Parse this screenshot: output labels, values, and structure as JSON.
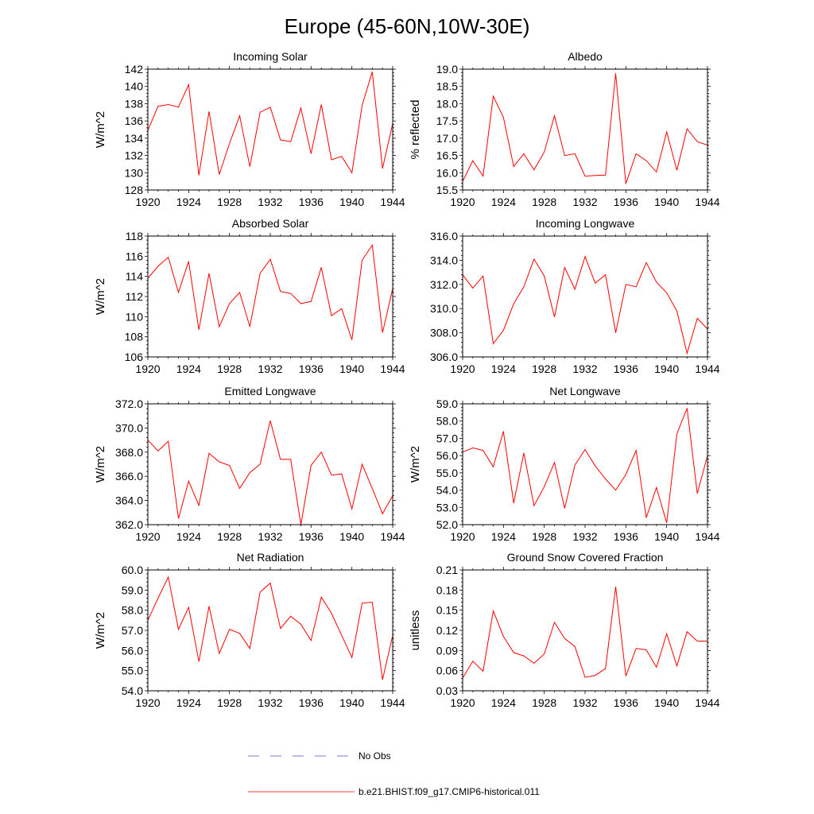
{
  "title": "Europe (45-60N,10W-30E)",
  "colors": {
    "model": "#ff0000",
    "obs": "#4d4dcc",
    "axis": "#000000"
  },
  "legend": {
    "obs_label": "No Obs",
    "model_label": "b.e21.BHIST.f09_g17.CMIP6-historical.011",
    "placement": "bottom-center"
  },
  "chart_data": [
    {
      "type": "line",
      "title": "Incoming Solar",
      "ylabel": "W/m^2",
      "xlim": [
        1920,
        1944
      ],
      "ylim": [
        128,
        142
      ],
      "xticks": [
        "1920",
        "1924",
        "1928",
        "1932",
        "1936",
        "1940",
        "1944"
      ],
      "yticks": [
        "128",
        "130",
        "132",
        "134",
        "136",
        "138",
        "140",
        "142"
      ],
      "series": [
        {
          "name": "b.e21.BHIST.f09_g17.CMIP6-historical.011",
          "x": [
            1920,
            1921,
            1922,
            1923,
            1924,
            1925,
            1926,
            1927,
            1928,
            1929,
            1930,
            1931,
            1932,
            1933,
            1934,
            1935,
            1936,
            1937,
            1938,
            1939,
            1940,
            1941,
            1942,
            1943,
            1944
          ],
          "values": [
            134.9,
            137.7,
            137.9,
            137.6,
            140.2,
            129.7,
            137.1,
            129.8,
            133.4,
            136.6,
            130.7,
            137.0,
            137.6,
            133.8,
            133.6,
            137.5,
            132.2,
            137.9,
            131.5,
            131.9,
            130.0,
            137.8,
            141.7,
            130.5,
            135.7
          ]
        }
      ]
    },
    {
      "type": "line",
      "title": "Albedo",
      "ylabel": "% reflected",
      "xlim": [
        1920,
        1944
      ],
      "ylim": [
        15.5,
        19.0
      ],
      "xticks": [
        "1920",
        "1924",
        "1928",
        "1932",
        "1936",
        "1940",
        "1944"
      ],
      "yticks": [
        "15.5",
        "16.0",
        "16.5",
        "17.0",
        "17.5",
        "18.0",
        "18.5",
        "19.0"
      ],
      "series": [
        {
          "name": "b.e21.BHIST.f09_g17.CMIP6-historical.011",
          "x": [
            1920,
            1921,
            1922,
            1923,
            1924,
            1925,
            1926,
            1927,
            1928,
            1929,
            1930,
            1931,
            1932,
            1933,
            1934,
            1935,
            1936,
            1937,
            1938,
            1939,
            1940,
            1941,
            1942,
            1943,
            1944
          ],
          "values": [
            15.75,
            16.35,
            15.9,
            18.22,
            17.6,
            16.18,
            16.55,
            16.08,
            16.6,
            17.65,
            16.5,
            16.55,
            15.9,
            15.92,
            15.93,
            18.88,
            15.68,
            16.55,
            16.35,
            16.02,
            17.18,
            16.07,
            17.27,
            16.9,
            16.8
          ]
        }
      ]
    },
    {
      "type": "line",
      "title": "Absorbed Solar",
      "ylabel": "W/m^2",
      "xlim": [
        1920,
        1944
      ],
      "ylim": [
        106,
        118
      ],
      "xticks": [
        "1920",
        "1924",
        "1928",
        "1932",
        "1936",
        "1940",
        "1944"
      ],
      "yticks": [
        "106",
        "108",
        "110",
        "112",
        "114",
        "116",
        "118"
      ],
      "series": [
        {
          "name": "b.e21.BHIST.f09_g17.CMIP6-historical.011",
          "x": [
            1920,
            1921,
            1922,
            1923,
            1924,
            1925,
            1926,
            1927,
            1928,
            1929,
            1930,
            1931,
            1932,
            1933,
            1934,
            1935,
            1936,
            1937,
            1938,
            1939,
            1940,
            1941,
            1942,
            1943,
            1944
          ],
          "values": [
            113.8,
            115.0,
            115.9,
            112.4,
            115.5,
            108.7,
            114.3,
            109.0,
            111.3,
            112.4,
            109.0,
            114.3,
            115.7,
            112.5,
            112.3,
            111.3,
            111.5,
            114.9,
            110.1,
            110.8,
            107.7,
            115.6,
            117.1,
            108.4,
            112.8
          ]
        }
      ]
    },
    {
      "type": "line",
      "title": "Incoming Longwave",
      "ylabel": "",
      "xlim": [
        1920,
        1944
      ],
      "ylim": [
        306.0,
        316.0
      ],
      "xticks": [
        "1920",
        "1924",
        "1928",
        "1932",
        "1936",
        "1940",
        "1944"
      ],
      "yticks": [
        "306.0",
        "308.0",
        "310.0",
        "312.0",
        "314.0",
        "316.0"
      ],
      "series": [
        {
          "name": "b.e21.BHIST.f09_g17.CMIP6-historical.011",
          "x": [
            1920,
            1921,
            1922,
            1923,
            1924,
            1925,
            1926,
            1927,
            1928,
            1929,
            1930,
            1931,
            1932,
            1933,
            1934,
            1935,
            1936,
            1937,
            1938,
            1939,
            1940,
            1941,
            1942,
            1943,
            1944
          ],
          "values": [
            312.8,
            311.7,
            312.7,
            307.1,
            308.2,
            310.4,
            311.8,
            314.1,
            312.7,
            309.3,
            313.4,
            311.6,
            314.3,
            312.1,
            312.8,
            308.0,
            312.0,
            311.8,
            313.8,
            312.2,
            311.3,
            309.8,
            306.3,
            309.2,
            308.3
          ]
        }
      ]
    },
    {
      "type": "line",
      "title": "Emitted Longwave",
      "ylabel": "W/m^2",
      "xlim": [
        1920,
        1944
      ],
      "ylim": [
        362.0,
        372.0
      ],
      "xticks": [
        "1920",
        "1924",
        "1928",
        "1932",
        "1936",
        "1940",
        "1944"
      ],
      "yticks": [
        "362.0",
        "364.0",
        "366.0",
        "368.0",
        "370.0",
        "372.0"
      ],
      "series": [
        {
          "name": "b.e21.BHIST.f09_g17.CMIP6-historical.011",
          "x": [
            1920,
            1921,
            1922,
            1923,
            1924,
            1925,
            1926,
            1927,
            1928,
            1929,
            1930,
            1931,
            1932,
            1933,
            1934,
            1935,
            1936,
            1937,
            1938,
            1939,
            1940,
            1941,
            1942,
            1943,
            1944
          ],
          "values": [
            369.0,
            368.1,
            368.9,
            362.5,
            365.6,
            363.6,
            367.9,
            367.2,
            366.9,
            365.0,
            366.3,
            367.0,
            370.6,
            367.4,
            367.4,
            362.0,
            366.9,
            368.0,
            366.1,
            366.2,
            363.3,
            367.0,
            365.0,
            362.9,
            364.4
          ]
        }
      ]
    },
    {
      "type": "line",
      "title": "Net Longwave",
      "ylabel": "W/m^2",
      "xlim": [
        1920,
        1944
      ],
      "ylim": [
        52.0,
        59.0
      ],
      "xticks": [
        "1920",
        "1924",
        "1928",
        "1932",
        "1936",
        "1940",
        "1944"
      ],
      "yticks": [
        "52.0",
        "53.0",
        "54.0",
        "55.0",
        "56.0",
        "57.0",
        "58.0",
        "59.0"
      ],
      "series": [
        {
          "name": "b.e21.BHIST.f09_g17.CMIP6-historical.011",
          "x": [
            1920,
            1921,
            1922,
            1923,
            1924,
            1925,
            1926,
            1927,
            1928,
            1929,
            1930,
            1931,
            1932,
            1933,
            1934,
            1935,
            1936,
            1937,
            1938,
            1939,
            1940,
            1941,
            1942,
            1943,
            1944
          ],
          "values": [
            56.2,
            56.45,
            56.3,
            55.35,
            57.4,
            53.25,
            56.15,
            53.1,
            54.2,
            55.6,
            52.95,
            55.45,
            56.35,
            55.4,
            54.65,
            54.0,
            54.9,
            56.3,
            52.4,
            54.15,
            52.1,
            57.25,
            58.75,
            53.8,
            56.0
          ]
        }
      ]
    },
    {
      "type": "line",
      "title": "Net Radiation",
      "ylabel": "W/m^2",
      "xlim": [
        1920,
        1944
      ],
      "ylim": [
        54.0,
        60.0
      ],
      "xticks": [
        "1920",
        "1924",
        "1928",
        "1932",
        "1936",
        "1940",
        "1944"
      ],
      "yticks": [
        "54.0",
        "55.0",
        "56.0",
        "57.0",
        "58.0",
        "59.0",
        "60.0"
      ],
      "series": [
        {
          "name": "b.e21.BHIST.f09_g17.CMIP6-historical.011",
          "x": [
            1920,
            1921,
            1922,
            1923,
            1924,
            1925,
            1926,
            1927,
            1928,
            1929,
            1930,
            1931,
            1932,
            1933,
            1934,
            1935,
            1936,
            1937,
            1938,
            1939,
            1940,
            1941,
            1942,
            1943,
            1944
          ],
          "values": [
            57.5,
            58.6,
            59.65,
            57.05,
            58.15,
            55.45,
            58.2,
            55.85,
            57.05,
            56.85,
            56.1,
            58.9,
            59.35,
            57.1,
            57.7,
            57.3,
            56.5,
            58.65,
            57.85,
            56.75,
            55.65,
            58.35,
            58.4,
            54.55,
            56.75
          ]
        }
      ]
    },
    {
      "type": "line",
      "title": "Ground Snow Covered Fraction",
      "ylabel": "unitless",
      "xlim": [
        1920,
        1944
      ],
      "ylim": [
        0.03,
        0.21
      ],
      "xticks": [
        "1920",
        "1924",
        "1928",
        "1932",
        "1936",
        "1940",
        "1944"
      ],
      "yticks": [
        "0.03",
        "0.06",
        "0.09",
        "0.12",
        "0.15",
        "0.18",
        "0.21"
      ],
      "series": [
        {
          "name": "b.e21.BHIST.f09_g17.CMIP6-historical.011",
          "x": [
            1920,
            1921,
            1922,
            1923,
            1924,
            1925,
            1926,
            1927,
            1928,
            1929,
            1930,
            1931,
            1932,
            1933,
            1934,
            1935,
            1936,
            1937,
            1938,
            1939,
            1940,
            1941,
            1942,
            1943,
            1944
          ],
          "values": [
            0.049,
            0.074,
            0.059,
            0.149,
            0.111,
            0.087,
            0.082,
            0.071,
            0.085,
            0.132,
            0.108,
            0.096,
            0.05,
            0.053,
            0.063,
            0.185,
            0.052,
            0.093,
            0.091,
            0.065,
            0.115,
            0.067,
            0.118,
            0.104,
            0.104
          ]
        }
      ]
    }
  ]
}
